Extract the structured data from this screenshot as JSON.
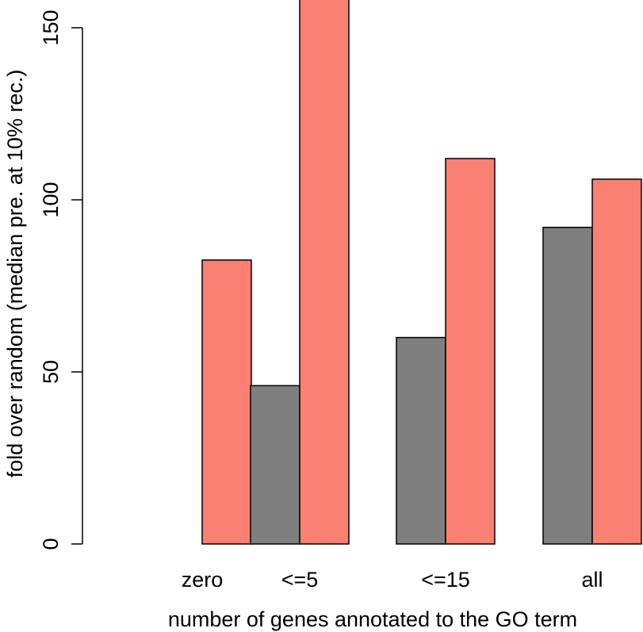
{
  "chart_data": {
    "type": "bar",
    "title": "",
    "xlabel": "number of genes annotated to the GO term",
    "ylabel": "fold over random (median pre. at 10% rec.)",
    "categories": [
      "zero",
      "<=5",
      "<=15",
      "all"
    ],
    "ylim": [
      0,
      160
    ],
    "yticks": [
      "0",
      "50",
      "100",
      "150"
    ],
    "grid": false,
    "series": [
      {
        "color": "#7f7f7f",
        "values": [
          0,
          46,
          60,
          92
        ]
      },
      {
        "color": "#fa8072",
        "values": [
          82.5,
          160,
          112,
          106
        ]
      }
    ]
  }
}
